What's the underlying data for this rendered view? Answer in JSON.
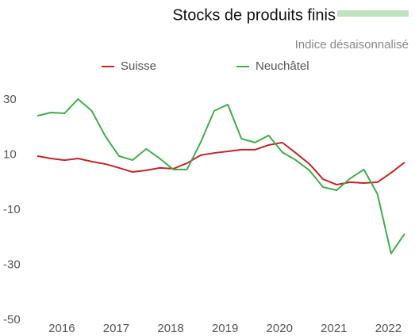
{
  "chart_data": {
    "type": "line",
    "title": "Stocks de produits finis",
    "subtitle": "Indice désaisonnalisé",
    "x": [
      2015.55,
      2015.8,
      2016.05,
      2016.3,
      2016.55,
      2016.8,
      2017.05,
      2017.3,
      2017.55,
      2017.8,
      2018.05,
      2018.3,
      2018.55,
      2018.8,
      2019.05,
      2019.3,
      2019.55,
      2019.8,
      2020.05,
      2020.3,
      2020.55,
      2020.8,
      2021.05,
      2021.3,
      2021.55,
      2021.8,
      2022.05,
      2022.3
    ],
    "series": [
      {
        "name": "Suisse",
        "color": "#c0252a",
        "values": [
          9.6,
          8.7,
          8.1,
          8.7,
          7.6,
          6.7,
          5.3,
          3.8,
          4.4,
          5.3,
          5.0,
          7.0,
          9.9,
          10.7,
          11.3,
          11.9,
          11.9,
          13.6,
          14.5,
          10.7,
          6.7,
          1.2,
          -0.8,
          0.1,
          -0.2,
          0.1,
          3.5,
          7.3
        ]
      },
      {
        "name": "Neuchâtel",
        "color": "#3fae49",
        "values": [
          24.2,
          25.4,
          25.1,
          30.3,
          26.0,
          16.8,
          9.6,
          8.1,
          12.2,
          8.7,
          4.7,
          4.7,
          14.5,
          26.0,
          28.3,
          15.9,
          14.5,
          17.1,
          11.0,
          8.1,
          4.4,
          -1.7,
          -2.8,
          1.5,
          4.7,
          -4.2,
          -25.8,
          -18.6
        ]
      }
    ],
    "xlim": [
      2015.55,
      2022.3
    ],
    "xticks": [
      2016,
      2017,
      2018,
      2019,
      2020,
      2021,
      2022
    ],
    "ylim": [
      -50,
      30
    ],
    "yticks": [
      30,
      10,
      -10,
      -30,
      -50
    ],
    "grid": false
  }
}
